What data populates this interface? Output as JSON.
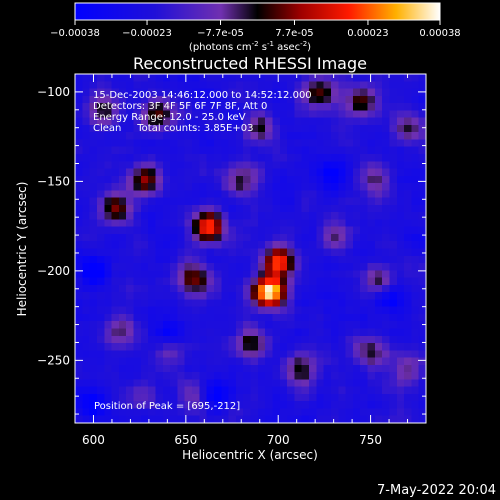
{
  "chart_data": {
    "type": "heatmap",
    "title": "Reconstructed RHESSI Image",
    "xlabel": "Heliocentric X (arcsec)",
    "ylabel": "Heliocentric Y (arcsec)",
    "xlim": [
      590,
      780
    ],
    "ylim": [
      -285,
      -90
    ],
    "xticks": [
      600,
      650,
      700,
      750
    ],
    "yticks": [
      -100,
      -150,
      -200,
      -250
    ],
    "colorbar": {
      "tick_labels": [
        "-0.00038",
        "-0.00023",
        "-7.7e-05",
        "7.7e-05",
        "0.00023",
        "0.00038"
      ],
      "tick_values": [
        -0.00038,
        -0.00023,
        -7.7e-05,
        7.7e-05,
        0.00023,
        0.00038
      ],
      "range": [
        -0.00038,
        0.00038
      ],
      "unit_base": "(photons cm",
      "unit_exp1": "-2",
      "unit_mid": " s",
      "unit_exp2": "-1",
      "unit_mid2": " asec",
      "unit_exp3": "-2",
      "unit_end": ")"
    },
    "annotations": [
      "15-Dec-2003 14:46:12.000 to 14:52:12.000",
      "Detectors: 3F 4F 5F 6F 7F 8F, Att 0",
      "Energy Range: 12.0 - 25.0 keV",
      "Clean     Total counts: 3.85E+03"
    ],
    "peak_label": "Position of Peak = [695,-212]",
    "peak_position": [
      695,
      -212
    ],
    "hotspots": [
      {
        "x": 695,
        "y": -212,
        "v": 1.0
      },
      {
        "x": 700,
        "y": -195,
        "v": 0.75
      },
      {
        "x": 662,
        "y": -175,
        "v": 0.7
      },
      {
        "x": 655,
        "y": -205,
        "v": 0.5
      },
      {
        "x": 628,
        "y": -150,
        "v": 0.55
      },
      {
        "x": 612,
        "y": -165,
        "v": 0.45
      },
      {
        "x": 635,
        "y": -112,
        "v": 0.45
      },
      {
        "x": 605,
        "y": -110,
        "v": 0.35
      },
      {
        "x": 722,
        "y": -100,
        "v": 0.45
      },
      {
        "x": 690,
        "y": -120,
        "v": 0.4
      },
      {
        "x": 745,
        "y": -105,
        "v": 0.45
      },
      {
        "x": 770,
        "y": -120,
        "v": 0.35
      },
      {
        "x": 752,
        "y": -150,
        "v": 0.3
      },
      {
        "x": 712,
        "y": -255,
        "v": 0.45
      },
      {
        "x": 685,
        "y": -240,
        "v": 0.4
      },
      {
        "x": 755,
        "y": -205,
        "v": 0.35
      },
      {
        "x": 750,
        "y": -245,
        "v": 0.35
      },
      {
        "x": 770,
        "y": -255,
        "v": 0.3
      },
      {
        "x": 640,
        "y": -245,
        "v": 0.25
      },
      {
        "x": 655,
        "y": -270,
        "v": 0.25
      },
      {
        "x": 615,
        "y": -235,
        "v": 0.3
      },
      {
        "x": 625,
        "y": -270,
        "v": 0.2
      },
      {
        "x": 730,
        "y": -180,
        "v": 0.3
      },
      {
        "x": 680,
        "y": -150,
        "v": 0.35
      }
    ],
    "coldspots": [
      {
        "x": 600,
        "y": -200
      },
      {
        "x": 730,
        "y": -145
      },
      {
        "x": 760,
        "y": -215
      },
      {
        "x": 640,
        "y": -235
      },
      {
        "x": 600,
        "y": -275
      },
      {
        "x": 665,
        "y": -270
      }
    ]
  },
  "footer": {
    "timestamp": "7-May-2022 20:04"
  }
}
